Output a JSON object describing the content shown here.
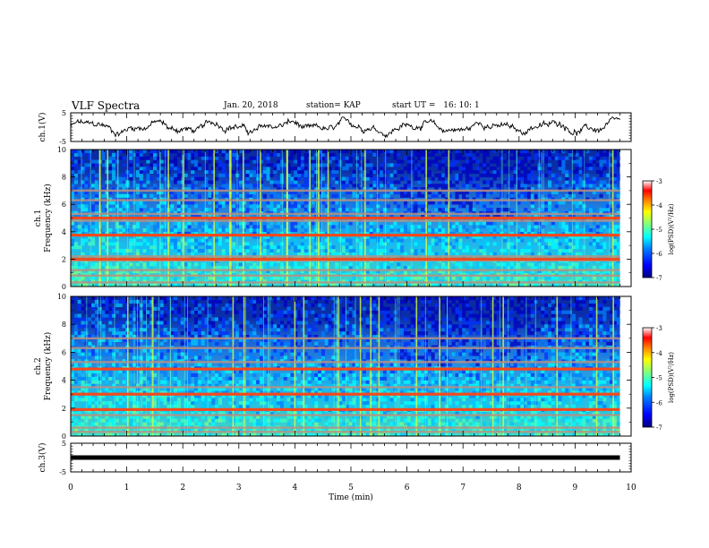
{
  "header": {
    "title": "VLF Spectra",
    "date": "Jan. 20, 2018",
    "station": "station= KAP",
    "start_label": "start  UT  =",
    "start_time": "16: 10: 1"
  },
  "colors": {
    "trace": "#000000",
    "background": "#ffffff",
    "colormap": [
      "#00007f",
      "#0000ff",
      "#007fff",
      "#00ffff",
      "#7fff7f",
      "#ffff00",
      "#ff7f00",
      "#ff0000",
      "#ffffff"
    ]
  },
  "chart_data": [
    {
      "type": "line",
      "ylabel": "ch.1(V)",
      "xlim": [
        0,
        10
      ],
      "ylim": [
        -5,
        5
      ],
      "yticks": [
        "5",
        "-5"
      ],
      "trace_description": "noisy waveform oscillating around 0 V, roughly between -3 and +3 V"
    },
    {
      "type": "heatmap",
      "ylabel": "ch.1\nFrequency (kHz)",
      "xlim": [
        0,
        10
      ],
      "ylim": [
        0,
        10
      ],
      "yticks": [
        "0",
        "2",
        "4",
        "6",
        "8",
        "10"
      ],
      "colorbar": {
        "label": "log(PSD)(V²/Hz)",
        "range": [
          -7,
          -3
        ],
        "ticks": [
          "-3",
          "-4",
          "-5",
          "-6",
          "-7"
        ]
      },
      "data_end_min": 9.8,
      "bands_khz": [
        0.3,
        0.8,
        1.2,
        1.9,
        2.2,
        3.75,
        4.8,
        5.0,
        5.3,
        6.3,
        7.0
      ],
      "strong_bands_khz": [
        3.75,
        2.0,
        5.0
      ]
    },
    {
      "type": "heatmap",
      "ylabel": "ch.2\nFrequency (kHz)",
      "xlim": [
        0,
        10
      ],
      "ylim": [
        0,
        10
      ],
      "yticks": [
        "0",
        "2",
        "4",
        "6",
        "8",
        "10"
      ],
      "colorbar": {
        "label": "log(PSD)(V²/Hz)",
        "range": [
          -7,
          -3
        ],
        "ticks": [
          "-3",
          "-4",
          "-5",
          "-6",
          "-7"
        ]
      },
      "data_end_min": 9.8,
      "bands_khz": [
        0.3,
        0.6,
        1.5,
        1.9,
        3.0,
        3.5,
        4.8,
        5.3,
        6.3,
        7.0
      ],
      "strong_bands_khz": [
        1.9,
        3.0,
        4.8
      ]
    },
    {
      "type": "line",
      "ylabel": "ch.3(V)",
      "xlabel": "Time  (min)",
      "xlim": [
        0,
        10
      ],
      "ylim": [
        -5,
        5
      ],
      "yticks": [
        "5",
        "-5"
      ],
      "xticks": [
        "0",
        "1",
        "2",
        "3",
        "4",
        "5",
        "6",
        "7",
        "8",
        "9",
        "10"
      ],
      "constant_value": 0
    }
  ]
}
